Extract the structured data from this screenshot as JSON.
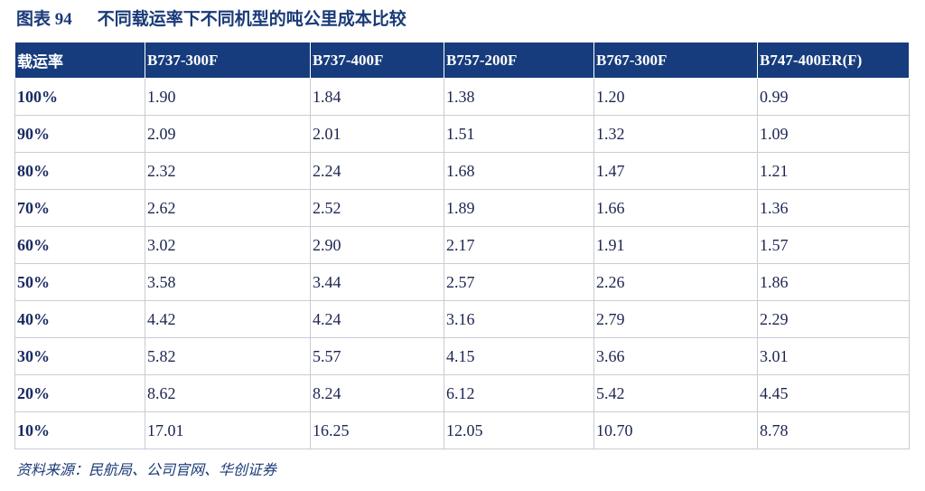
{
  "header": {
    "label": "图表 94",
    "title": "不同载运率下不同机型的吨公里成本比较"
  },
  "table": {
    "columns": [
      "载运率",
      "B737-300F",
      "B737-400F",
      "B757-200F",
      "B767-300F",
      "B747-400ER(F)"
    ],
    "rows": [
      [
        "100%",
        "1.90",
        "1.84",
        "1.38",
        "1.20",
        "0.99"
      ],
      [
        "90%",
        "2.09",
        "2.01",
        "1.51",
        "1.32",
        "1.09"
      ],
      [
        "80%",
        "2.32",
        "2.24",
        "1.68",
        "1.47",
        "1.21"
      ],
      [
        "70%",
        "2.62",
        "2.52",
        "1.89",
        "1.66",
        "1.36"
      ],
      [
        "60%",
        "3.02",
        "2.90",
        "2.17",
        "1.91",
        "1.57"
      ],
      [
        "50%",
        "3.58",
        "3.44",
        "2.57",
        "2.26",
        "1.86"
      ],
      [
        "40%",
        "4.42",
        "4.24",
        "3.16",
        "2.79",
        "2.29"
      ],
      [
        "30%",
        "5.82",
        "5.57",
        "4.15",
        "3.66",
        "3.01"
      ],
      [
        "20%",
        "8.62",
        "8.24",
        "6.12",
        "5.42",
        "4.45"
      ],
      [
        "10%",
        "17.01",
        "16.25",
        "12.05",
        "10.70",
        "8.78"
      ]
    ]
  },
  "footer": {
    "source": "资料来源：民航局、公司官网、华创证券"
  }
}
